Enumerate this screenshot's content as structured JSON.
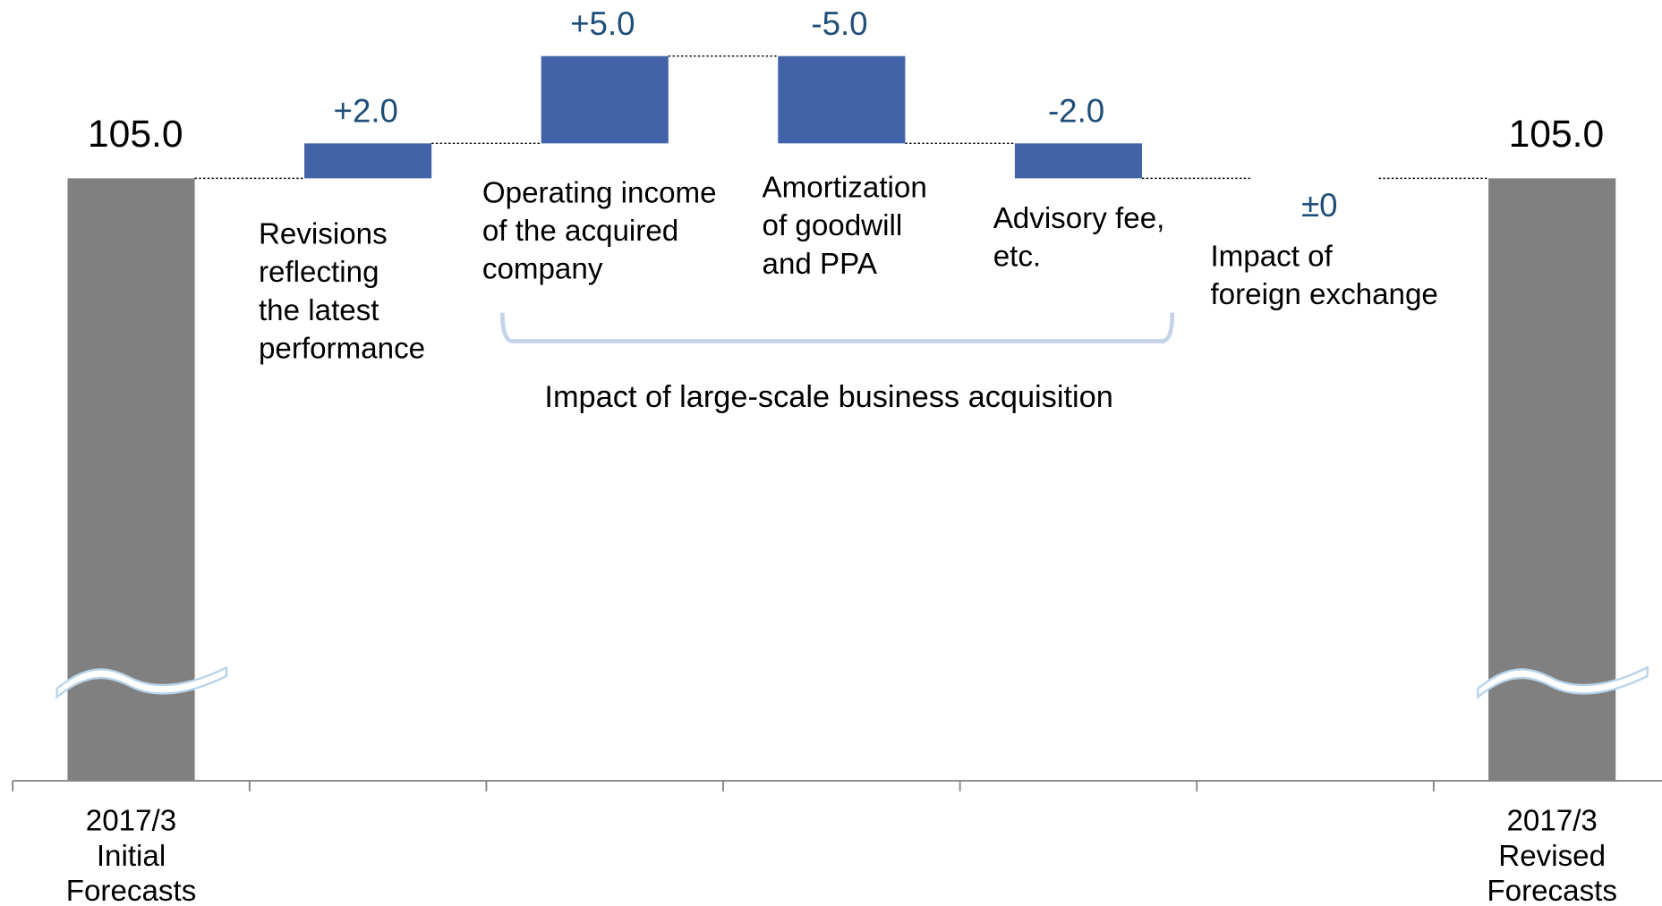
{
  "chart_data": {
    "type": "waterfall",
    "categories": [
      "2017/3\nInitial\nForecasts",
      null,
      null,
      null,
      null,
      null,
      "2017/3\nRevised\nForecasts"
    ],
    "values": [
      105,
      2,
      5,
      -5,
      -2,
      0,
      105
    ],
    "value_labels": [
      "105.0",
      "+2.0",
      "+5.0",
      "-5.0",
      "-2.0",
      "±0",
      "105.0"
    ],
    "totals": [
      true,
      false,
      false,
      false,
      false,
      false,
      true
    ],
    "descriptions": [
      null,
      "Revisions\nreflecting\nthe latest\nperformance",
      "Operating income\nof the acquired\ncompany",
      "Amortization\nof goodwill\nand PPA",
      "Advisory fee,\netc.",
      "Impact of\nforeign exchange",
      null
    ],
    "bracket_label": "Impact of large-scale business acquisition",
    "total_color": "#808080",
    "delta_color": "#4263a8",
    "ylim": [
      70.5,
      115.2
    ],
    "axis_break": true
  }
}
